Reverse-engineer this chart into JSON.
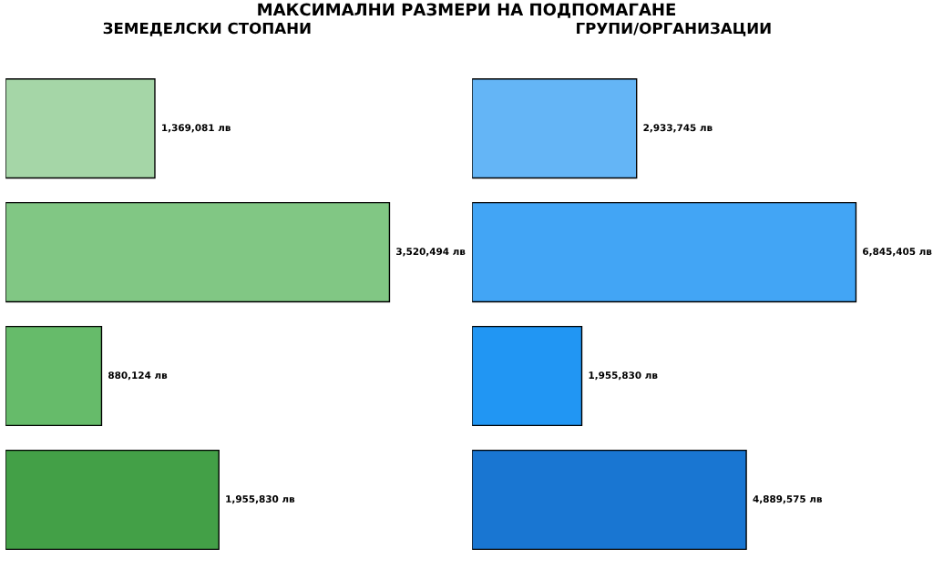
{
  "chart_data": [
    {
      "type": "bar",
      "orientation": "horizontal",
      "title": "ЗЕМЕДЕЛСКИ СТОПАНИ",
      "annotations": [
        "МАКСИМАЛНИ РАЗМЕРИ НА ПОДПОМАГАНЕ"
      ],
      "categories": [
        null,
        null,
        null,
        null
      ],
      "values": [
        1369081,
        3520494,
        880124,
        1955830
      ],
      "colors": [
        "#a5d6a7",
        "#81c784",
        "#66bb6a",
        "#43a047"
      ],
      "value_labels": [
        "1,369,081 лв",
        "3,520,494 лв",
        "880,124 лв",
        "1,955,830 лв"
      ],
      "tick_labels": false
    },
    {
      "type": "bar",
      "orientation": "horizontal",
      "title": "ГРУПИ/ОРГАНИЗАЦИИ",
      "categories": [
        null,
        null,
        null,
        null
      ],
      "values": [
        2933745,
        6845405,
        1955830,
        4889575
      ],
      "colors": [
        "#64b5f6",
        "#42a5f5",
        "#2196f3",
        "#1976d2"
      ],
      "value_labels": [
        "2,933,745 лв",
        "6,845,405 лв",
        "1,955,830 лв",
        "4,889,575 лв"
      ],
      "tick_labels": false
    }
  ]
}
